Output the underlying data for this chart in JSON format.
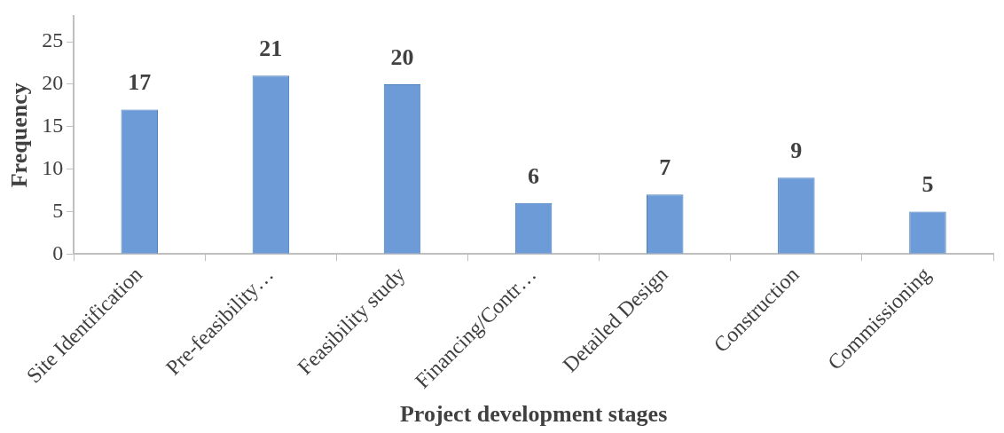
{
  "chart_data": {
    "type": "bar",
    "xlabel": "Project development stages",
    "ylabel": "Frequency",
    "categories": [
      "Site Identification",
      "Pre-feasibility…",
      "Feasibility study",
      "Financing/Contr…",
      "Detailed Design",
      "Construction",
      "Commissioning"
    ],
    "values": [
      17,
      21,
      20,
      6,
      7,
      9,
      5
    ],
    "color": "#6d9bd8",
    "ylim": [
      0,
      28
    ],
    "yticks": [
      0,
      5,
      10,
      15,
      20,
      25
    ],
    "grid": false,
    "legend": false,
    "data_labels": true
  }
}
